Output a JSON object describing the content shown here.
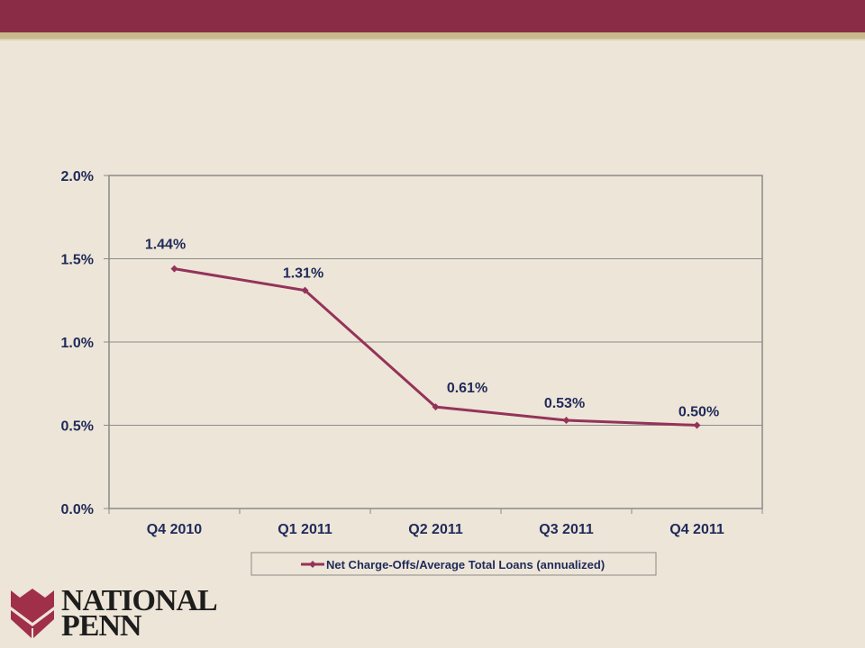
{
  "chart_data": {
    "type": "line",
    "categories": [
      "Q4 2010",
      "Q1 2011",
      "Q2 2011",
      "Q3 2011",
      "Q4 2011"
    ],
    "series": [
      {
        "name": "Net Charge-Offs/Average Total Loans (annualized)",
        "values": [
          1.44,
          1.31,
          0.61,
          0.53,
          0.5
        ],
        "labels": [
          "1.44%",
          "1.31%",
          "0.61%",
          "0.53%",
          "0.50%"
        ],
        "color": "#94335a"
      }
    ],
    "ylim": [
      0,
      2.0
    ],
    "yticks": [
      0,
      0.5,
      1.0,
      1.5,
      2.0
    ],
    "ytick_labels": [
      "0.0%",
      "0.5%",
      "1.0%",
      "1.5%",
      "2.0%"
    ],
    "grid": true,
    "legend": "bottom",
    "title": "",
    "xlabel": "",
    "ylabel": ""
  },
  "logo": {
    "line1": "NATIONAL",
    "line2": "PENN",
    "colors": {
      "petals": "#a02f4a",
      "text": "#1d1d1d"
    }
  }
}
